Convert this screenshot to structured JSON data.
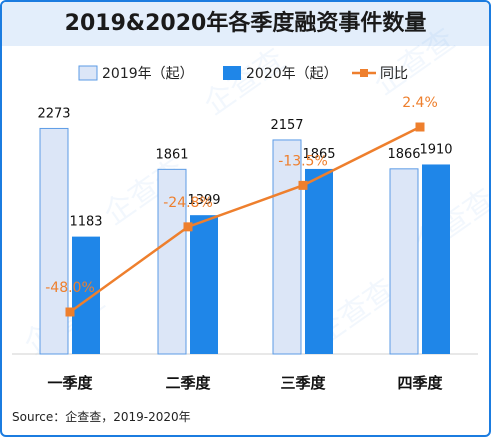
{
  "title": "2019&2020年各季度融资事件数量",
  "source": "Source：企查查，2019-2020年",
  "watermark": "企查查",
  "colors": {
    "bar2019_fill": "#dce6f7",
    "bar2019_stroke": "#5b9be6",
    "bar2020": "#1f86e8",
    "line": "#ee7f2d",
    "border": "#1b7ce0",
    "title_bg": "#e3eefb"
  },
  "chart_data": {
    "type": "bar",
    "categories": [
      "一季度",
      "二季度",
      "三季度",
      "四季度"
    ],
    "series": [
      {
        "name": "2019年（起）",
        "values": [
          2273,
          1861,
          2157,
          1866
        ]
      },
      {
        "name": "2020年（起）",
        "values": [
          1183,
          1399,
          1865,
          1910
        ]
      }
    ],
    "line_series": {
      "name": "同比",
      "values": [
        -48.0,
        -24.8,
        -13.5,
        2.4
      ],
      "labels": [
        "-48.0%",
        "-24.8%",
        "-13.5%",
        "2.4%"
      ]
    },
    "ylim": [
      0,
      2600
    ],
    "line_ylim": [
      -60,
      10
    ],
    "legend": "top-center",
    "grid": false
  }
}
